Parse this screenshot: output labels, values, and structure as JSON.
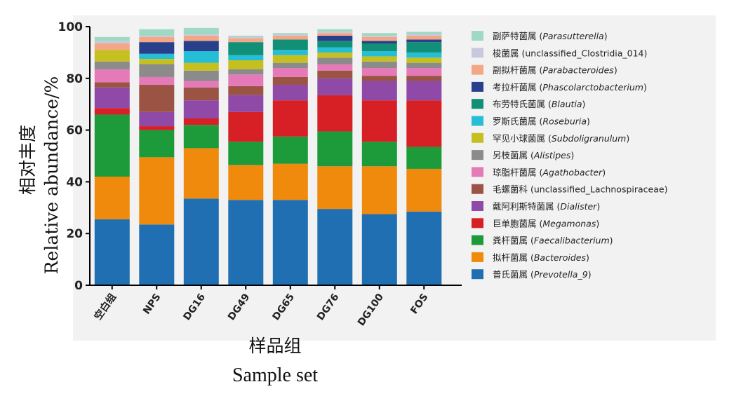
{
  "chart_data": {
    "type": "bar",
    "stacked": true,
    "ylabel": "相对丰度\nRelative abundance/%",
    "ylabel_cn": "相对丰度",
    "ylabel_en": "Relative abundance/%",
    "xlabel_cn": "样品组",
    "xlabel_en": "Sample set",
    "ylim": [
      0,
      100
    ],
    "yticks": [
      0,
      20,
      40,
      60,
      80,
      100
    ],
    "categories": [
      "空白组",
      "NPS",
      "DG16",
      "DG49",
      "DG65",
      "DG76",
      "DG100",
      "FOS"
    ],
    "legend_position": "right",
    "series": [
      {
        "name": "普氏菌属",
        "latin": "Prevotella_9",
        "color": "#1f6fb2",
        "values": [
          25.5,
          23.5,
          33.5,
          33,
          33,
          29.5,
          27.5,
          28.5
        ]
      },
      {
        "name": "拟杆菌属",
        "latin": "Bacteroides",
        "color": "#f08a0c",
        "values": [
          16.5,
          26,
          19.5,
          13.5,
          14,
          16.5,
          18.5,
          16.5
        ]
      },
      {
        "name": "粪杆菌属",
        "latin": "Faecalibacterium",
        "color": "#1d9a3a",
        "values": [
          24,
          10.5,
          9,
          9,
          10.5,
          13.5,
          9.5,
          8.5
        ]
      },
      {
        "name": "巨单胞菌属",
        "latin": "Megamonas",
        "color": "#d71f26",
        "values": [
          2.5,
          1.5,
          2.5,
          11.5,
          14,
          14,
          16,
          18
        ]
      },
      {
        "name": "戴阿利斯特菌属",
        "latin": "Dialister",
        "color": "#8e4aa6",
        "values": [
          8,
          5.5,
          7,
          6.5,
          6,
          6.5,
          7.5,
          7.5
        ]
      },
      {
        "name": "毛螺菌科",
        "latin": "unclassified_Lachnospiraceae",
        "color": "#9b5444",
        "values": [
          2,
          10.5,
          5,
          3.5,
          3,
          3,
          2,
          2
        ]
      },
      {
        "name": "琼脂杆菌属",
        "latin": "Agathobacter",
        "color": "#e57ab9",
        "values": [
          5,
          3,
          2.5,
          4.5,
          3.5,
          2.5,
          3,
          3
        ]
      },
      {
        "name": "另枝菌属",
        "latin": "Alistipes",
        "color": "#8b8b8b",
        "values": [
          3,
          5,
          4,
          2,
          2,
          2.5,
          2.5,
          2
        ]
      },
      {
        "name": "罕见小球菌属",
        "latin": "Subdoligranulum",
        "color": "#c5c020",
        "values": [
          4.5,
          2,
          3,
          3.5,
          3,
          2,
          2,
          2
        ]
      },
      {
        "name": "罗斯氏菌属",
        "latin": "Roseburia",
        "color": "#26bdd6",
        "values": [
          0,
          2,
          4.5,
          2,
          2,
          2,
          2,
          2
        ]
      },
      {
        "name": "布劳特氏菌属",
        "latin": "Blautia",
        "color": "#128f77",
        "values": [
          0,
          0,
          0,
          5,
          4,
          2.5,
          3,
          4
        ]
      },
      {
        "name": "考拉杆菌属",
        "latin": "Phascolarctobacterium",
        "color": "#283f8c",
        "values": [
          0,
          4.5,
          4,
          0,
          0,
          2,
          1,
          1
        ]
      },
      {
        "name": "副拟杆菌属",
        "latin": "Parabacteroides",
        "color": "#f4a785",
        "values": [
          2.5,
          2,
          2,
          1.5,
          1.5,
          1,
          1.5,
          1.5
        ]
      },
      {
        "name": "梭菌属",
        "latin": "unclassified_Clostridia_014",
        "color": "#c9c9de",
        "values": [
          1,
          0.5,
          0.5,
          0.5,
          0.5,
          0.5,
          0.5,
          0.5
        ]
      },
      {
        "name": "副萨特菌属",
        "latin": "Parasutterella",
        "color": "#9fd9c4",
        "values": [
          1.5,
          2.5,
          2.5,
          0.5,
          0.5,
          1,
          1,
          1
        ]
      }
    ]
  }
}
